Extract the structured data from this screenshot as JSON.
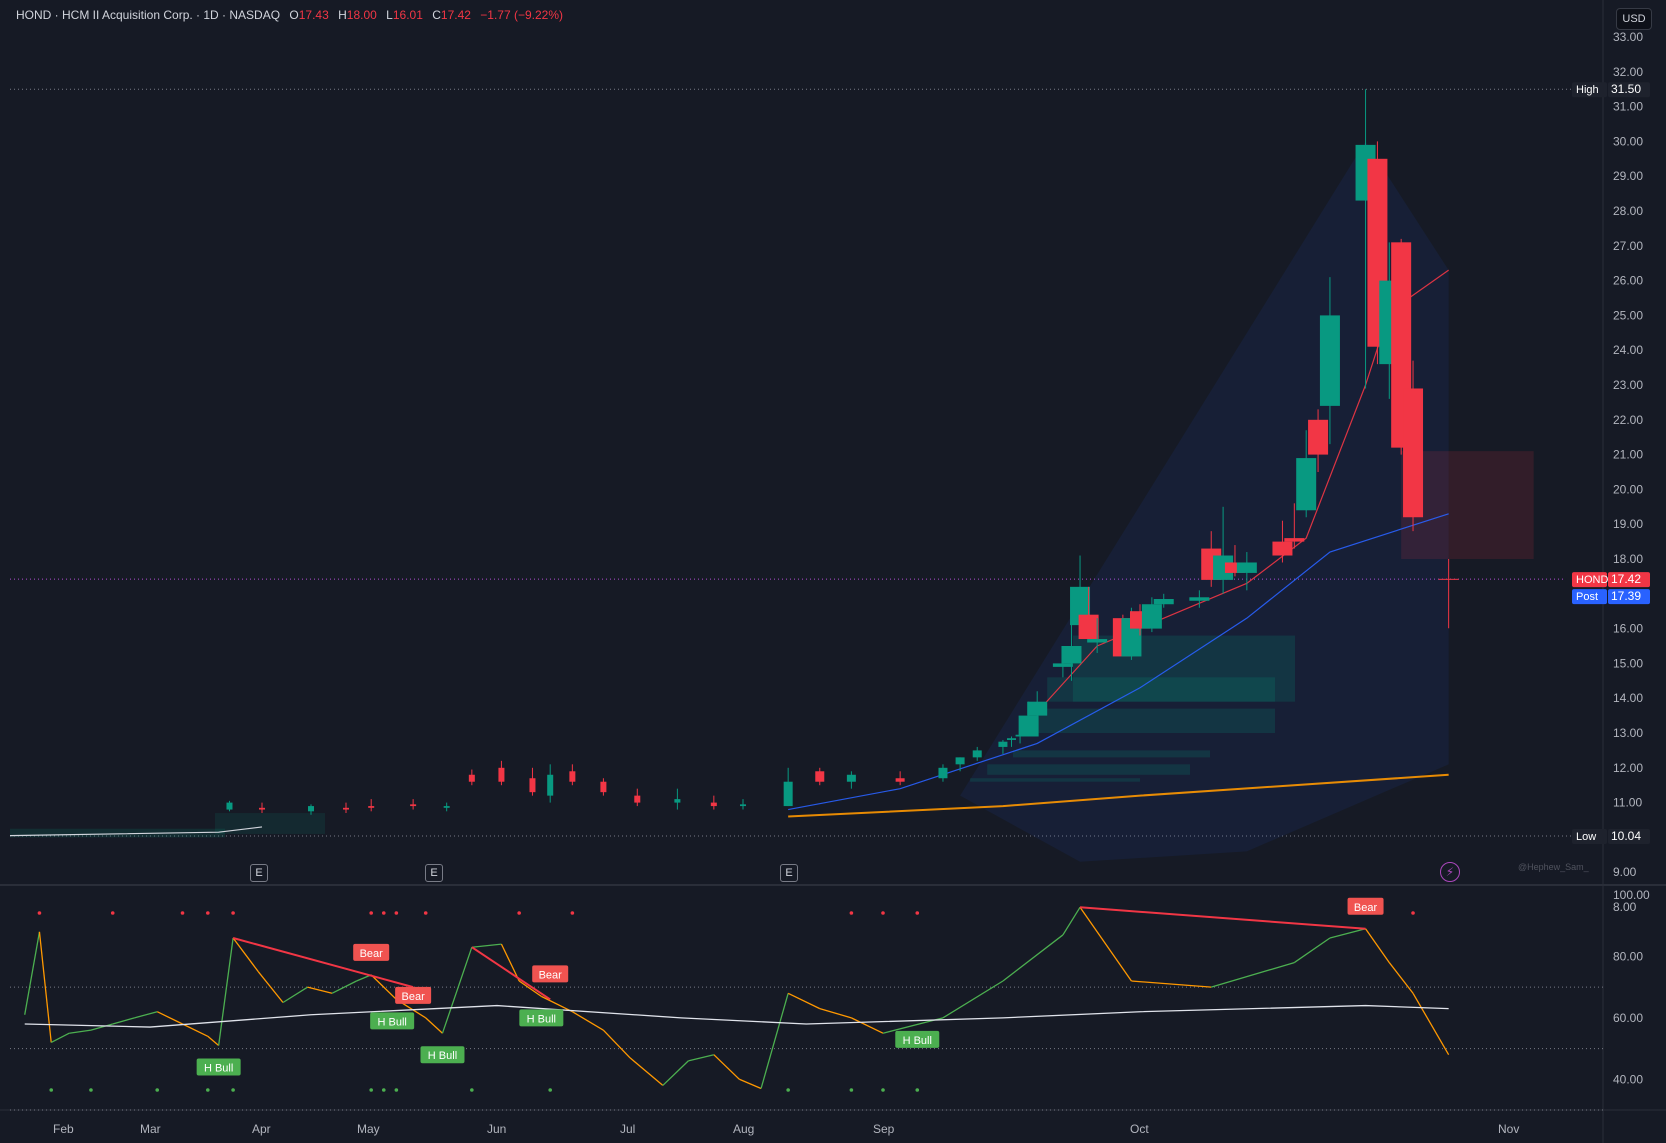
{
  "header": {
    "symbol_line": "HOND · HCM II Acquisition Corp. · 1D · NASDAQ",
    "open_key": "O",
    "open": "17.43",
    "high_key": "H",
    "high": "18.00",
    "low_key": "L",
    "low": "16.01",
    "close_key": "C",
    "close": "17.42",
    "change": "−1.77 (−9.22%)"
  },
  "currency_button": "USD",
  "price_tags": {
    "high_label": "High",
    "high_value": "31.50",
    "low_label": "Low",
    "low_value": "10.04",
    "last_label": "HOND",
    "last_value": "17.42",
    "post_label": "Post",
    "post_value": "17.39"
  },
  "earnings_marker": "E",
  "watermark": "@Hephew_Sam_",
  "colors": {
    "background": "#161a25",
    "up": "#089981",
    "down": "#f23645",
    "grid_line": "#2a2e39",
    "sma_short": "#f23645",
    "sma_mid": "#2962ff",
    "sma_long": "#ff9800",
    "rsi_ma": "#e0e3eb",
    "bull_label": "#4caf50",
    "bear_label": "#f05350"
  },
  "chart_data": [
    {
      "type": "candlestick",
      "title": "HOND · HCM II Acquisition Corp. · 1D · NASDAQ",
      "ylim": [
        8,
        33
      ],
      "y_ticks": [
        "33.00",
        "32.00",
        "31.00",
        "30.00",
        "29.00",
        "28.00",
        "27.00",
        "26.00",
        "25.00",
        "24.00",
        "23.00",
        "22.00",
        "21.00",
        "20.00",
        "19.00",
        "18.00",
        "17.00",
        "16.00",
        "15.00",
        "14.00",
        "13.00",
        "12.00",
        "11.00",
        "10.00",
        "9.00",
        "8.00"
      ],
      "x_ticks": [
        "Feb",
        "Mar",
        "Apr",
        "May",
        "Jun",
        "Jul",
        "Aug",
        "Sep",
        "Oct",
        "Nov"
      ],
      "candles": [
        {
          "d": "Mar 23",
          "o": 10.8,
          "h": 11.05,
          "l": 10.75,
          "c": 11.0
        },
        {
          "d": "Apr 1",
          "o": 10.85,
          "h": 11.0,
          "l": 10.7,
          "c": 10.8
        },
        {
          "d": "Apr 15",
          "o": 10.75,
          "h": 10.95,
          "l": 10.65,
          "c": 10.9
        },
        {
          "d": "Apr 25",
          "o": 10.85,
          "h": 11.0,
          "l": 10.7,
          "c": 10.8
        },
        {
          "d": "May 2",
          "o": 10.9,
          "h": 11.1,
          "l": 10.75,
          "c": 10.85
        },
        {
          "d": "May 12",
          "o": 10.95,
          "h": 11.1,
          "l": 10.8,
          "c": 10.9
        },
        {
          "d": "May 20",
          "o": 10.85,
          "h": 11.0,
          "l": 10.75,
          "c": 10.9
        },
        {
          "d": "May 26",
          "o": 11.8,
          "h": 11.95,
          "l": 11.5,
          "c": 11.6
        },
        {
          "d": "Jun 2",
          "o": 12.0,
          "h": 12.2,
          "l": 11.5,
          "c": 11.6
        },
        {
          "d": "Jun 9",
          "o": 11.7,
          "h": 12.0,
          "l": 11.2,
          "c": 11.3
        },
        {
          "d": "Jun 13",
          "o": 11.2,
          "h": 12.1,
          "l": 11.0,
          "c": 11.8
        },
        {
          "d": "Jun 18",
          "o": 11.9,
          "h": 12.1,
          "l": 11.5,
          "c": 11.6
        },
        {
          "d": "Jun 25",
          "o": 11.6,
          "h": 11.7,
          "l": 11.2,
          "c": 11.3
        },
        {
          "d": "Jul 3",
          "o": 11.2,
          "h": 11.4,
          "l": 10.9,
          "c": 11.0
        },
        {
          "d": "Jul 14",
          "o": 11.0,
          "h": 11.4,
          "l": 10.8,
          "c": 11.1
        },
        {
          "d": "Jul 24",
          "o": 11.0,
          "h": 11.2,
          "l": 10.8,
          "c": 10.9
        },
        {
          "d": "Aug 1",
          "o": 10.9,
          "h": 11.1,
          "l": 10.8,
          "c": 10.95
        },
        {
          "d": "Aug 11",
          "o": 10.9,
          "h": 12.0,
          "l": 10.9,
          "c": 11.6
        },
        {
          "d": "Aug 18",
          "o": 11.9,
          "h": 12.0,
          "l": 11.5,
          "c": 11.6
        },
        {
          "d": "Aug 25",
          "o": 11.6,
          "h": 11.9,
          "l": 11.4,
          "c": 11.8
        },
        {
          "d": "Sep 3",
          "o": 11.7,
          "h": 11.9,
          "l": 11.5,
          "c": 11.6
        },
        {
          "d": "Sep 8",
          "o": 11.7,
          "h": 12.1,
          "l": 11.6,
          "c": 12.0
        },
        {
          "d": "Sep 10",
          "o": 12.1,
          "h": 12.3,
          "l": 11.9,
          "c": 12.3
        },
        {
          "d": "Sep 12",
          "o": 12.3,
          "h": 12.6,
          "l": 12.2,
          "c": 12.5
        },
        {
          "d": "Sep 15",
          "o": 12.6,
          "h": 12.8,
          "l": 12.4,
          "c": 12.75
        },
        {
          "d": "Sep 16",
          "o": 12.8,
          "h": 12.9,
          "l": 12.6,
          "c": 12.85
        },
        {
          "d": "Sep 17",
          "o": 12.9,
          "h": 13.0,
          "l": 12.7,
          "c": 12.95
        },
        {
          "d": "Sep 18",
          "o": 12.9,
          "h": 13.9,
          "l": 12.9,
          "c": 13.5
        },
        {
          "d": "Sep 19",
          "o": 13.5,
          "h": 14.2,
          "l": 13.4,
          "c": 13.9
        },
        {
          "d": "Sep 22",
          "o": 14.9,
          "h": 15.1,
          "l": 14.6,
          "c": 15.0
        },
        {
          "d": "Sep 23",
          "o": 15.0,
          "h": 16.4,
          "l": 14.5,
          "c": 15.5
        },
        {
          "d": "Sep 24",
          "o": 16.1,
          "h": 18.1,
          "l": 15.9,
          "c": 17.2
        },
        {
          "d": "Sep 25",
          "o": 16.4,
          "h": 17.2,
          "l": 15.8,
          "c": 15.7
        },
        {
          "d": "Sep 26",
          "o": 15.6,
          "h": 16.3,
          "l": 15.3,
          "c": 15.7
        },
        {
          "d": "Sep 29",
          "o": 16.3,
          "h": 16.4,
          "l": 15.2,
          "c": 15.2
        },
        {
          "d": "Sep 30",
          "o": 15.2,
          "h": 16.6,
          "l": 15.1,
          "c": 16.3
        },
        {
          "d": "Oct 1",
          "o": 16.5,
          "h": 16.7,
          "l": 15.8,
          "c": 16.0
        },
        {
          "d": "Oct 2",
          "o": 16.0,
          "h": 16.9,
          "l": 15.9,
          "c": 16.7
        },
        {
          "d": "Oct 3",
          "o": 16.7,
          "h": 17.0,
          "l": 16.6,
          "c": 16.85
        },
        {
          "d": "Oct 6",
          "o": 16.8,
          "h": 17.1,
          "l": 16.6,
          "c": 16.9
        },
        {
          "d": "Oct 7",
          "o": 18.3,
          "h": 18.8,
          "l": 17.2,
          "c": 17.4
        },
        {
          "d": "Oct 8",
          "o": 17.4,
          "h": 19.5,
          "l": 17.0,
          "c": 18.1
        },
        {
          "d": "Oct 9",
          "o": 17.9,
          "h": 18.4,
          "l": 17.5,
          "c": 17.6
        },
        {
          "d": "Oct 10",
          "o": 17.6,
          "h": 18.2,
          "l": 17.1,
          "c": 17.9
        },
        {
          "d": "Oct 13",
          "o": 18.5,
          "h": 19.1,
          "l": 17.9,
          "c": 18.1
        },
        {
          "d": "Oct 14",
          "o": 18.6,
          "h": 19.6,
          "l": 18.3,
          "c": 18.5
        },
        {
          "d": "Oct 15",
          "o": 19.4,
          "h": 21.7,
          "l": 19.2,
          "c": 20.9
        },
        {
          "d": "Oct 16",
          "o": 22.0,
          "h": 22.3,
          "l": 20.5,
          "c": 21.0
        },
        {
          "d": "Oct 17",
          "o": 22.4,
          "h": 26.1,
          "l": 21.3,
          "c": 25.0
        },
        {
          "d": "Oct 20",
          "o": 28.3,
          "h": 31.5,
          "l": 22.9,
          "c": 29.9
        },
        {
          "d": "Oct 21",
          "o": 29.5,
          "h": 30.0,
          "l": 23.6,
          "c": 24.1
        },
        {
          "d": "Oct 22",
          "o": 23.6,
          "h": 27.1,
          "l": 22.6,
          "c": 26.0
        },
        {
          "d": "Oct 23",
          "o": 27.1,
          "h": 27.2,
          "l": 21.0,
          "c": 21.2
        },
        {
          "d": "Oct 24",
          "o": 22.9,
          "h": 23.7,
          "l": 18.8,
          "c": 19.2
        },
        {
          "d": "Oct 27",
          "o": 17.43,
          "h": 18.0,
          "l": 16.01,
          "c": 17.42
        }
      ],
      "overlays": [
        {
          "name": "SMA short",
          "color": "#f23645",
          "values": [
            [
              "Sep 19",
              13.6
            ],
            [
              "Sep 26",
              15.5
            ],
            [
              "Oct 3",
              16.3
            ],
            [
              "Oct 10",
              17.3
            ],
            [
              "Oct 15",
              18.6
            ],
            [
              "Oct 20",
              23.0
            ],
            [
              "Oct 22",
              25.1
            ],
            [
              "Oct 27",
              26.3
            ]
          ]
        },
        {
          "name": "SMA mid",
          "color": "#2962ff",
          "values": [
            [
              "Aug 11",
              10.8
            ],
            [
              "Sep 3",
              11.4
            ],
            [
              "Sep 19",
              12.7
            ],
            [
              "Oct 1",
              14.3
            ],
            [
              "Oct 10",
              16.3
            ],
            [
              "Oct 17",
              18.2
            ],
            [
              "Oct 27",
              19.3
            ]
          ]
        },
        {
          "name": "SMA long",
          "color": "#ff9800",
          "values": [
            [
              "Aug 11",
              10.6
            ],
            [
              "Sep 15",
              10.9
            ],
            [
              "Oct 1",
              11.2
            ],
            [
              "Oct 27",
              11.8
            ]
          ]
        }
      ],
      "range_high": 31.5,
      "range_low": 10.04,
      "last_price": 17.42,
      "post_price": 17.39
    },
    {
      "type": "line",
      "title": "",
      "ylim": [
        30,
        100
      ],
      "y_ticks": [
        "100.00",
        "80.00",
        "60.00",
        "40.00"
      ],
      "levels": [
        70,
        50,
        30
      ],
      "series": [
        {
          "values": [
            [
              "Jan 19",
              61
            ],
            [
              "Jan 24",
              88
            ],
            [
              "Jan 28",
              52
            ],
            [
              "Feb 3",
              55
            ],
            [
              "Feb 10",
              56
            ],
            [
              "Feb 17",
              58
            ],
            [
              "Feb 24",
              60
            ],
            [
              "Mar 3",
              62
            ],
            [
              "Mar 10",
              58
            ],
            [
              "Mar 17",
              54
            ],
            [
              "Mar 20",
              51
            ],
            [
              "Mar 24",
              86
            ],
            [
              "Mar 31",
              75
            ],
            [
              "Apr 7",
              65
            ],
            [
              "Apr 14",
              70
            ],
            [
              "Apr 21",
              68
            ],
            [
              "Apr 28",
              72
            ],
            [
              "May 2",
              74
            ],
            [
              "May 8",
              66
            ],
            [
              "May 15",
              60
            ],
            [
              "May 19",
              55
            ],
            [
              "May 26",
              83
            ],
            [
              "Jun 2",
              84
            ],
            [
              "Jun 6",
              72
            ],
            [
              "Jun 11",
              67
            ],
            [
              "Jun 18",
              62
            ],
            [
              "Jun 25",
              56
            ],
            [
              "Jul 1",
              47
            ],
            [
              "Jul 10",
              38
            ],
            [
              "Jul 17",
              46
            ],
            [
              "Jul 24",
              48
            ],
            [
              "Jul 31",
              40
            ],
            [
              "Aug 5",
              37
            ],
            [
              "Aug 11",
              68
            ],
            [
              "Aug 18",
              63
            ],
            [
              "Aug 25",
              60
            ],
            [
              "Sep 1",
              55
            ],
            [
              "Sep 8",
              60
            ],
            [
              "Sep 15",
              72
            ],
            [
              "Sep 22",
              87
            ],
            [
              "Sep 24",
              96
            ],
            [
              "Sep 30",
              72
            ],
            [
              "Oct 7",
              70
            ],
            [
              "Oct 14",
              78
            ],
            [
              "Oct 17",
              86
            ],
            [
              "Oct 20",
              89
            ],
            [
              "Oct 22",
              78
            ],
            [
              "Oct 24",
              68
            ],
            [
              "Oct 27",
              48
            ]
          ]
        },
        {
          "values": [
            [
              "Jan 19",
              58
            ],
            [
              "Mar 1",
              57
            ],
            [
              "Apr 15",
              61
            ],
            [
              "Jun 1",
              64
            ],
            [
              "Jul 15",
              60
            ],
            [
              "Aug 15",
              58
            ],
            [
              "Sep 15",
              60
            ],
            [
              "Oct 1",
              62
            ],
            [
              "Oct 20",
              64
            ],
            [
              "Oct 27",
              63
            ]
          ]
        }
      ],
      "annotations": [
        {
          "text": "Bear",
          "x": "May 2"
        },
        {
          "text": "Bear",
          "x": "May 12"
        },
        {
          "text": "Bear",
          "x": "Jun 13"
        },
        {
          "text": "Bear",
          "x": "Oct 20"
        },
        {
          "text": "H Bull",
          "x": "Mar 20"
        },
        {
          "text": "H Bull",
          "x": "May 7"
        },
        {
          "text": "H Bull",
          "x": "May 19"
        },
        {
          "text": "H Bull",
          "x": "Jun 11"
        },
        {
          "text": "H Bull",
          "x": "Sep 5"
        }
      ]
    }
  ]
}
